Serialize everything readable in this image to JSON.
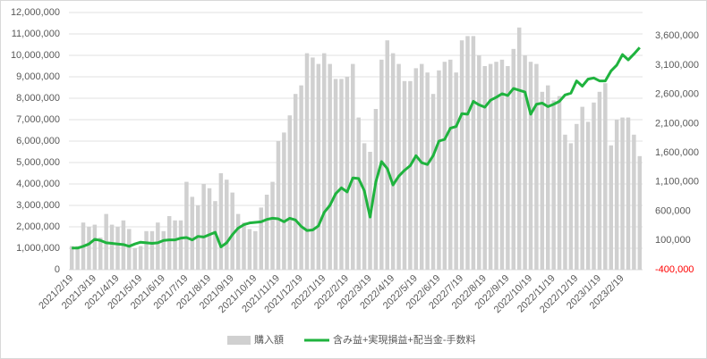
{
  "chart_data": {
    "type": "bar-line",
    "categories": [
      "2021/2/19",
      null,
      null,
      null,
      "2021/3/19",
      null,
      null,
      null,
      "2021/4/19",
      null,
      null,
      null,
      "2021/5/19",
      null,
      null,
      null,
      "2021/6/19",
      null,
      null,
      null,
      "2021/7/19",
      null,
      null,
      null,
      "2021/8/19",
      null,
      null,
      null,
      "2021/9/19",
      null,
      null,
      null,
      "2021/10/19",
      null,
      null,
      null,
      "2021/11/19",
      null,
      null,
      null,
      "2021/12/19",
      null,
      null,
      null,
      "2022/1/19",
      null,
      null,
      null,
      "2022/2/19",
      null,
      null,
      null,
      "2022/3/19",
      null,
      null,
      null,
      "2022/4/19",
      null,
      null,
      null,
      "2022/5/19",
      null,
      null,
      null,
      "2022/6/19",
      null,
      null,
      null,
      "2022/7/19",
      null,
      null,
      null,
      "2022/8/19",
      null,
      null,
      null,
      "2022/9/19",
      null,
      null,
      null,
      "2022/10/19",
      null,
      null,
      null,
      "2022/11/19",
      null,
      null,
      null,
      "2022/12/19",
      null,
      null,
      null,
      "2023/1/19",
      null,
      null,
      null,
      "2023/2/19",
      null,
      null,
      null
    ],
    "series": [
      {
        "name": "購入額",
        "color": "#d0d0d0",
        "axis": "y",
        "values": [
          1100000,
          1100000,
          2200000,
          2000000,
          2100000,
          1500000,
          2600000,
          2100000,
          2000000,
          2300000,
          1900000,
          1000000,
          1100000,
          1800000,
          1800000,
          2200000,
          1800000,
          2500000,
          2300000,
          2300000,
          4100000,
          3400000,
          3000000,
          4000000,
          3800000,
          3200000,
          4500000,
          4200000,
          3600000,
          2600000,
          2200000,
          1900000,
          1800000,
          2900000,
          3500000,
          4100000,
          6000000,
          6400000,
          7200000,
          8200000,
          8600000,
          10100000,
          9900000,
          9600000,
          10100000,
          9600000,
          8900000,
          8900000,
          9000000,
          9600000,
          7100000,
          5900000,
          5500000,
          7500000,
          9800000,
          10700000,
          10100000,
          9600000,
          8800000,
          8800000,
          9400000,
          9600000,
          9200000,
          8200000,
          9300000,
          9700000,
          9800000,
          9200000,
          10700000,
          10900000,
          10900000,
          10000000,
          9500000,
          9600000,
          9700000,
          9800000,
          9500000,
          10300000,
          11300000,
          10000000,
          9700000,
          9600000,
          8300000,
          8600000,
          7900000,
          8100000,
          6300000,
          5900000,
          6800000,
          7600000,
          6900000,
          7800000,
          8300000,
          8700000,
          5800000,
          7000000,
          7100000,
          7100000,
          6300000,
          5300000
        ]
      },
      {
        "name": "含み益+実現損益+配当金-手数料",
        "color": "#1fb33e",
        "axis": "y2",
        "values": [
          -30000,
          -30000,
          0,
          40000,
          120000,
          100000,
          60000,
          50000,
          40000,
          30000,
          0,
          40000,
          70000,
          60000,
          50000,
          60000,
          100000,
          110000,
          110000,
          140000,
          150000,
          110000,
          170000,
          160000,
          200000,
          240000,
          -10000,
          60000,
          200000,
          310000,
          370000,
          400000,
          410000,
          420000,
          460000,
          480000,
          470000,
          420000,
          480000,
          450000,
          340000,
          270000,
          280000,
          350000,
          580000,
          700000,
          900000,
          1000000,
          930000,
          1170000,
          1160000,
          950000,
          500000,
          1100000,
          1450000,
          1330000,
          1050000,
          1200000,
          1300000,
          1380000,
          1550000,
          1430000,
          1400000,
          1550000,
          1800000,
          1830000,
          2020000,
          2050000,
          2270000,
          2260000,
          2480000,
          2420000,
          2380000,
          2500000,
          2550000,
          2610000,
          2580000,
          2700000,
          2670000,
          2640000,
          2260000,
          2430000,
          2450000,
          2390000,
          2430000,
          2480000,
          2590000,
          2620000,
          2830000,
          2740000,
          2860000,
          2880000,
          2830000,
          2830000,
          3000000,
          3100000,
          3280000,
          3190000,
          3290000,
          3400000
        ]
      }
    ],
    "ylim": [
      0,
      12000000
    ],
    "yticks": [
      0,
      {
        "value": 1000000,
        "label": "1,000,000"
      },
      {
        "value": 2000000,
        "label": "2,000,000"
      },
      {
        "value": 3000000,
        "label": "3,000,000"
      },
      {
        "value": 4000000,
        "label": "4,000,000"
      },
      {
        "value": 5000000,
        "label": "5,000,000"
      },
      {
        "value": 6000000,
        "label": "6,000,000"
      },
      {
        "value": 7000000,
        "label": "7,000,000"
      },
      {
        "value": 8000000,
        "label": "8,000,000"
      },
      {
        "value": 9000000,
        "label": "9,000,000"
      },
      {
        "value": 10000000,
        "label": "10,000,000"
      },
      {
        "value": 11000000,
        "label": "11,000,000"
      },
      {
        "value": 12000000,
        "label": "12,000,000"
      }
    ],
    "y2lim": [
      -400000,
      4000000
    ],
    "y2ticks": [
      {
        "value": -400000,
        "label": "-400,000"
      },
      {
        "value": 100000,
        "label": "100,000"
      },
      {
        "value": 600000,
        "label": "600,000"
      },
      {
        "value": 1100000,
        "label": "1,100,000"
      },
      {
        "value": 1600000,
        "label": "1,600,000"
      },
      {
        "value": 2100000,
        "label": "2,100,000"
      },
      {
        "value": 2600000,
        "label": "2,600,000"
      },
      {
        "value": 3100000,
        "label": "3,100,000"
      },
      {
        "value": 3600000,
        "label": "3,600,000"
      }
    ],
    "y2tick_color": "#ff0000",
    "grid": true,
    "legend": "bottom"
  }
}
